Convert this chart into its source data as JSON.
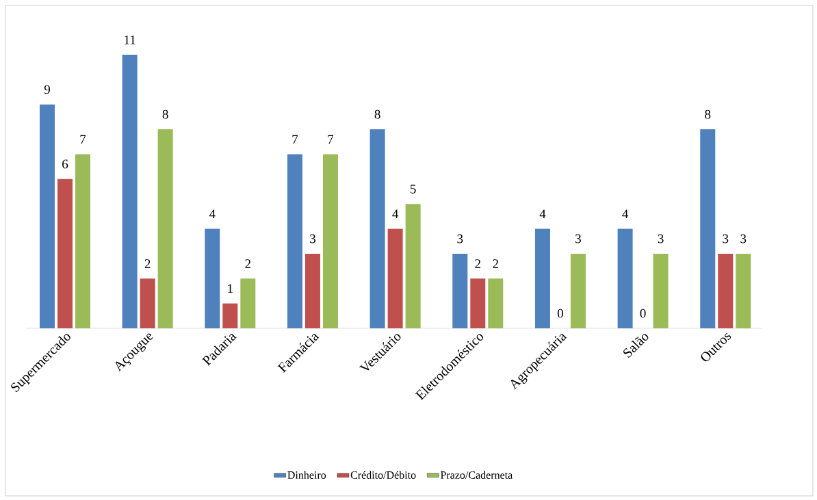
{
  "chart_data": {
    "type": "bar",
    "categories": [
      "Supermercado",
      "Açougue",
      "Padaria",
      "Farmácia",
      "Vestuário",
      "Eletrodoméstico",
      "Agropecuária",
      "Salão",
      "Outros"
    ],
    "series": [
      {
        "name": "Dinheiro",
        "color": "#4f81bd",
        "values": [
          9,
          11,
          4,
          7,
          8,
          3,
          4,
          4,
          8
        ]
      },
      {
        "name": "Crédito/Débito",
        "color": "#c0504d",
        "values": [
          6,
          2,
          1,
          3,
          4,
          2,
          0,
          0,
          3
        ]
      },
      {
        "name": "Prazo/Caderneta",
        "color": "#9bbb59",
        "values": [
          7,
          8,
          2,
          7,
          5,
          2,
          3,
          3,
          3
        ]
      }
    ],
    "data_labels": true,
    "legend": "bottom"
  }
}
